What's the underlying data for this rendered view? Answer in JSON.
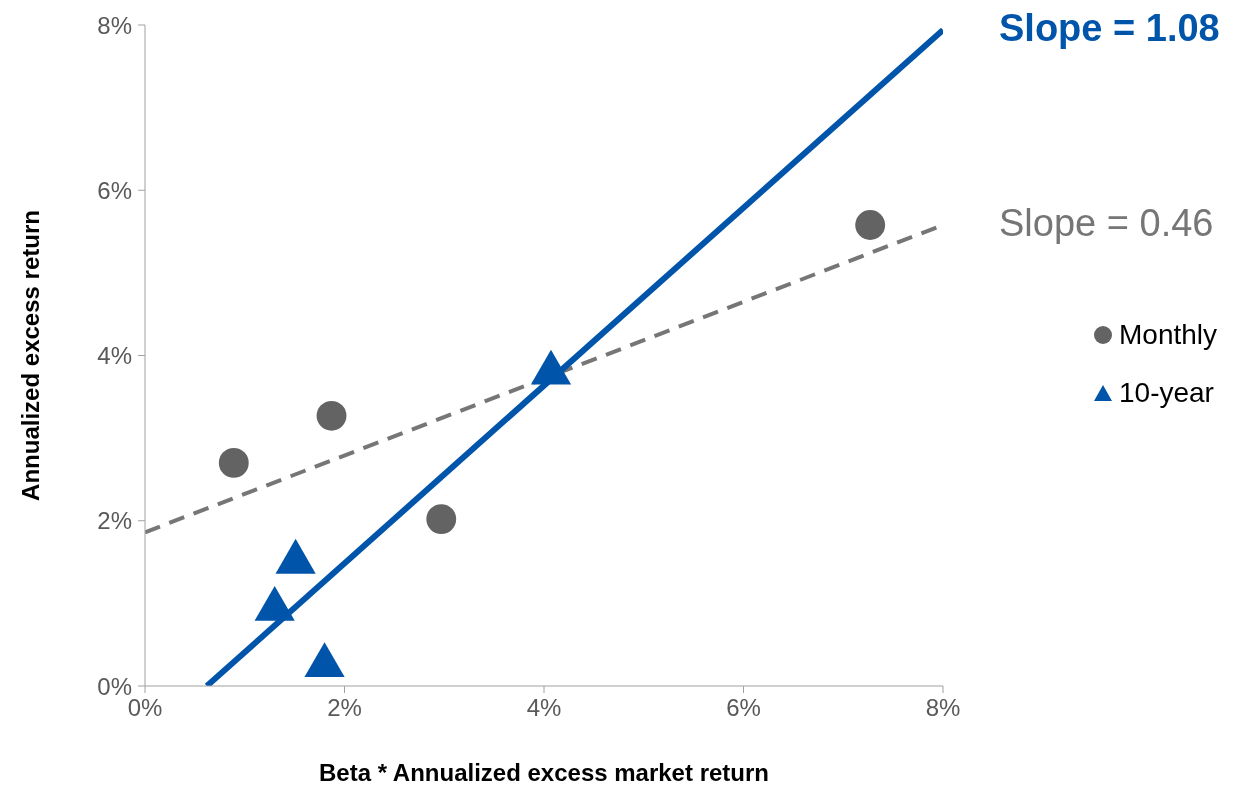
{
  "chart_data": {
    "type": "scatter",
    "xlabel": "Beta * Annualized excess market return",
    "ylabel": "Annualized excess return",
    "xlim": [
      0,
      8
    ],
    "ylim": [
      0,
      8
    ],
    "xticks": [
      {
        "value": 0,
        "label": "0%"
      },
      {
        "value": 2,
        "label": "2%"
      },
      {
        "value": 4,
        "label": "4%"
      },
      {
        "value": 6,
        "label": "6%"
      },
      {
        "value": 8,
        "label": "8%"
      }
    ],
    "yticks": [
      {
        "value": 0,
        "label": "0%"
      },
      {
        "value": 2,
        "label": "2%"
      },
      {
        "value": 4,
        "label": "4%"
      },
      {
        "value": 6,
        "label": "6%"
      },
      {
        "value": 8,
        "label": "8%"
      }
    ],
    "legend": "right",
    "series": [
      {
        "type": "line",
        "color": "#767676",
        "line_style": "dashed",
        "marker": "none",
        "x": [
          0,
          8
        ],
        "values": [
          1.86,
          5.58
        ]
      },
      {
        "type": "line",
        "color": "#0055aa",
        "line_style": "solid",
        "marker": "none",
        "x": [
          0.62,
          8
        ],
        "values": [
          0,
          7.94
        ]
      },
      {
        "name": "Monthly",
        "color": "#636363",
        "marker": "circle",
        "x": [
          0.89,
          1.87,
          2.97,
          7.27
        ],
        "values": [
          2.7,
          3.27,
          2.02,
          5.58
        ]
      },
      {
        "name": "10-year",
        "color": "#0055aa",
        "marker": "triangle",
        "x": [
          1.3,
          1.51,
          1.8,
          4.07
        ],
        "values": [
          0.93,
          1.5,
          0.25,
          3.79
        ]
      }
    ],
    "annotations": [
      {
        "text": "Slope = 1.08",
        "x": 8,
        "y": 7.94
      },
      {
        "text": "Slope = 0.46",
        "x": 8,
        "y": 5.58
      }
    ]
  }
}
